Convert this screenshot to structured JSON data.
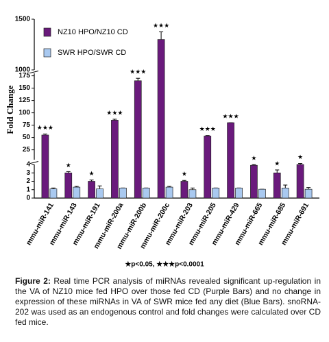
{
  "chart_data": {
    "type": "bar",
    "y_label": "Fold Change",
    "categories": [
      "mmu-miR-141",
      "mmu-miR-143",
      "mmu-miR-191",
      "mmu-miR-200a",
      "mmu-miR-200b",
      "mmu-miR-200c",
      "mmu-miR-203",
      "mmu-miR-205",
      "mmu-miR-429",
      "mmu-miR-665",
      "mmu-miR-685",
      "mmu-miR-691"
    ],
    "series": [
      {
        "name": "NZ10 HPO/NZ10 CD",
        "color": "#6a1a7c",
        "values": [
          55,
          3.0,
          2.0,
          85,
          165,
          1300,
          2.0,
          53,
          80,
          3.9,
          3.0,
          4.0
        ],
        "errors": [
          2,
          0.15,
          0.15,
          2,
          5,
          75,
          0.1,
          1,
          0,
          0.1,
          0.35,
          0.2
        ]
      },
      {
        "name": "SWR HPO/SWR CD",
        "color": "#a9c9f0",
        "values": [
          1.1,
          1.3,
          1.1,
          1.2,
          1.2,
          1.3,
          1.0,
          1.2,
          1.2,
          1.05,
          1.2,
          1.05
        ],
        "errors": [
          0.1,
          0.1,
          0.35,
          0,
          0,
          0.1,
          0.2,
          0,
          0,
          0,
          0.35,
          0.2
        ]
      }
    ],
    "significance": [
      "★★★",
      "★",
      "★",
      "★★★",
      "★★★",
      "★★★",
      "★",
      "★★★",
      "★★★",
      "★",
      "★",
      "★"
    ],
    "segments": [
      {
        "ylim": [
          0,
          4
        ],
        "yticks": [
          0,
          1,
          2,
          3,
          4
        ]
      },
      {
        "ylim": [
          5,
          180
        ],
        "yticks": [
          25,
          50,
          75,
          100,
          125,
          150,
          175
        ]
      },
      {
        "ylim": [
          1000,
          1500
        ],
        "yticks": [
          1000,
          1500
        ]
      }
    ],
    "footnote": "★p<0.05, ★★★p<0.0001"
  },
  "caption": {
    "label": "Figure 2:",
    "text": "Real time PCR analysis of miRNAs revealed significant up-regulation in the VA of NZ10 mice fed HPO over those fed CD (Purple Bars) and no change in expression of these miRNAs in VA of SWR mice fed any diet (Blue Bars). snoRNA-202 was used as an endogenous control and fold changes were calculated over CD fed mice."
  }
}
